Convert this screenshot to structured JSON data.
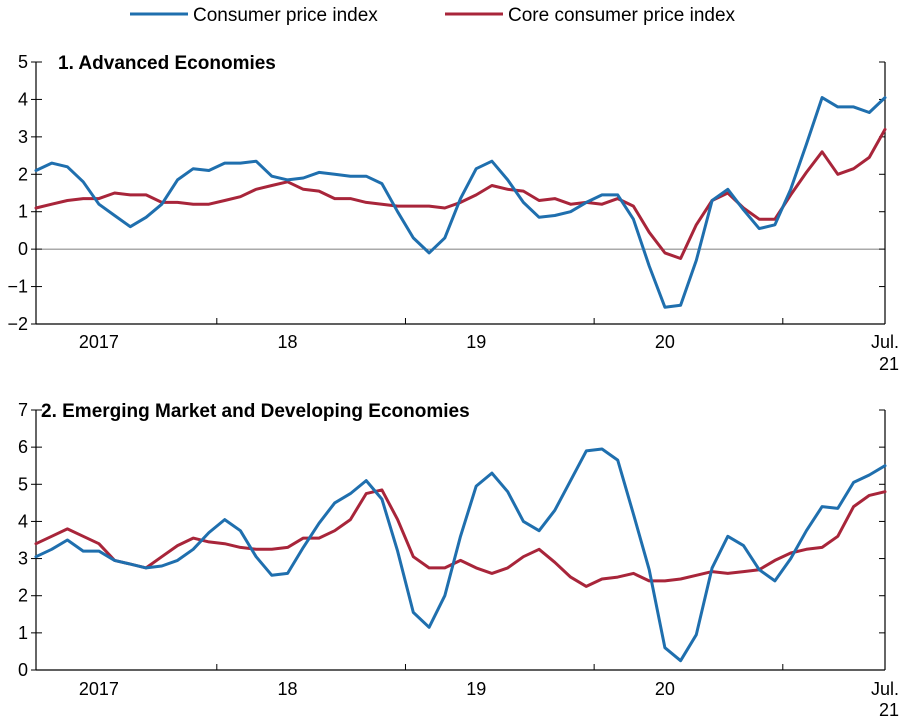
{
  "legend": [
    {
      "name": "Consumer price index",
      "color": "#1f6fae"
    },
    {
      "name": "Core consumer price index",
      "color": "#a8253a"
    }
  ],
  "chart_data": [
    {
      "type": "line",
      "title": "1. Advanced Economies",
      "xlabel": "",
      "ylabel": "",
      "x_labels": [
        {
          "text": "2017",
          "index": 4
        },
        {
          "text": "18",
          "index": 16
        },
        {
          "text": "19",
          "index": 28
        },
        {
          "text": "20",
          "index": 40
        },
        {
          "text": "Jul.",
          "index": 54
        },
        {
          "text": "21",
          "index": 54
        }
      ],
      "year_boundaries": [
        -1,
        11,
        23,
        35,
        47
      ],
      "n_points": 55,
      "ylim": [
        -2,
        5
      ],
      "yticks": [
        "−2",
        "−1",
        "0",
        "1",
        "2",
        "3",
        "4",
        "5"
      ],
      "zero_line": true,
      "series": [
        {
          "name": "Consumer price index",
          "color": "#1f6fae",
          "values": [
            2.1,
            2.3,
            2.2,
            1.8,
            1.2,
            0.9,
            0.6,
            0.85,
            1.2,
            1.85,
            2.15,
            2.1,
            2.3,
            2.3,
            2.35,
            1.95,
            1.85,
            1.9,
            2.05,
            2.0,
            1.95,
            1.95,
            1.75,
            1.0,
            0.3,
            -0.1,
            0.3,
            1.35,
            2.15,
            2.35,
            1.85,
            1.25,
            0.85,
            0.9,
            1.0,
            1.25,
            1.45,
            1.45,
            0.8,
            -0.45,
            -1.55,
            -1.5,
            -0.3,
            1.3,
            1.6,
            1.05,
            0.55,
            0.65,
            1.6,
            2.8,
            4.05,
            3.8,
            3.8,
            3.65,
            4.05
          ]
        },
        {
          "name": "Core consumer price index",
          "color": "#a8253a",
          "values": [
            1.1,
            1.2,
            1.3,
            1.35,
            1.35,
            1.5,
            1.45,
            1.45,
            1.25,
            1.25,
            1.2,
            1.2,
            1.3,
            1.4,
            1.6,
            1.7,
            1.8,
            1.6,
            1.55,
            1.35,
            1.35,
            1.25,
            1.2,
            1.15,
            1.15,
            1.15,
            1.1,
            1.25,
            1.45,
            1.7,
            1.6,
            1.55,
            1.3,
            1.35,
            1.2,
            1.25,
            1.2,
            1.35,
            1.15,
            0.45,
            -0.1,
            -0.25,
            0.65,
            1.3,
            1.5,
            1.1,
            0.8,
            0.8,
            1.45,
            2.05,
            2.6,
            2.0,
            2.15,
            2.45,
            3.2
          ]
        }
      ]
    },
    {
      "type": "line",
      "title": "2. Emerging Market and Developing Economies",
      "xlabel": "",
      "ylabel": "",
      "x_labels": [
        {
          "text": "2017",
          "index": 4
        },
        {
          "text": "18",
          "index": 16
        },
        {
          "text": "19",
          "index": 28
        },
        {
          "text": "20",
          "index": 40
        },
        {
          "text": "Jul.",
          "index": 54
        },
        {
          "text": "21",
          "index": 54
        }
      ],
      "year_boundaries": [
        -1,
        11,
        23,
        35,
        47
      ],
      "n_points": 55,
      "ylim": [
        0,
        7
      ],
      "yticks": [
        "0",
        "1",
        "2",
        "3",
        "4",
        "5",
        "6",
        "7"
      ],
      "zero_line": false,
      "series": [
        {
          "name": "Consumer price index",
          "color": "#1f6fae",
          "values": [
            3.05,
            3.25,
            3.5,
            3.2,
            3.2,
            2.95,
            2.85,
            2.75,
            2.8,
            2.95,
            3.25,
            3.7,
            4.05,
            3.75,
            3.05,
            2.55,
            2.6,
            3.3,
            3.95,
            4.5,
            4.75,
            5.1,
            4.6,
            3.2,
            1.55,
            1.15,
            2.0,
            3.6,
            4.95,
            5.3,
            4.8,
            4.0,
            3.75,
            4.3,
            5.1,
            5.9,
            5.95,
            5.65,
            4.2,
            2.7,
            0.6,
            0.25,
            0.95,
            2.75,
            3.6,
            3.35,
            2.7,
            2.4,
            3.0,
            3.75,
            4.4,
            4.35,
            5.05,
            5.25,
            5.5
          ]
        },
        {
          "name": "Core consumer price index",
          "color": "#a8253a",
          "values": [
            3.4,
            3.6,
            3.8,
            3.6,
            3.4,
            2.95,
            2.85,
            2.75,
            3.05,
            3.35,
            3.55,
            3.45,
            3.4,
            3.3,
            3.25,
            3.25,
            3.3,
            3.55,
            3.55,
            3.75,
            4.05,
            4.75,
            4.85,
            4.05,
            3.05,
            2.75,
            2.75,
            2.95,
            2.75,
            2.6,
            2.75,
            3.05,
            3.25,
            2.9,
            2.5,
            2.25,
            2.45,
            2.5,
            2.6,
            2.4,
            2.4,
            2.45,
            2.55,
            2.65,
            2.6,
            2.65,
            2.7,
            2.95,
            3.15,
            3.25,
            3.3,
            3.6,
            4.4,
            4.7,
            4.8
          ]
        }
      ]
    }
  ]
}
